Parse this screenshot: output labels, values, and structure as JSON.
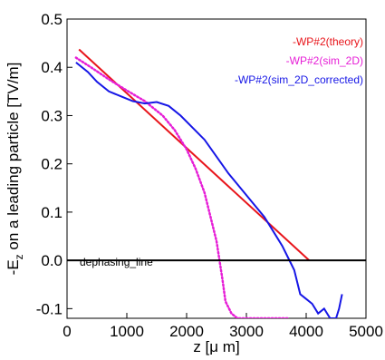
{
  "chart_data": {
    "type": "line",
    "title": "",
    "xlabel": "z [μ m]",
    "ylabel": "-E_z on a leading particle [TV/m]",
    "xlim": [
      0,
      5000
    ],
    "ylim": [
      -0.12,
      0.5
    ],
    "x_ticks": [
      0,
      1000,
      2000,
      3000,
      4000,
      5000
    ],
    "y_ticks": [
      -0.1,
      0.0,
      0.1,
      0.2,
      0.3,
      0.4,
      0.5
    ],
    "x_tick_labels": [
      "0",
      "1000",
      "2000",
      "3000",
      "4000",
      "5000"
    ],
    "y_tick_labels": [
      "-0.1",
      "0.0",
      "0.1",
      "0.2",
      "0.3",
      "0.4",
      "0.5"
    ],
    "grid": false,
    "legend_position": "top-right",
    "series": [
      {
        "name": "-WP#2(theory)",
        "color": "#e8141a",
        "style": "solid",
        "x": [
          200,
          4050
        ],
        "y": [
          0.437,
          0.0
        ]
      },
      {
        "name": "-WP#2(sim_2D)",
        "color": "#e61ed6",
        "style": "dotted",
        "x": [
          150,
          400,
          700,
          1000,
          1300,
          1600,
          1800,
          2000,
          2150,
          2300,
          2400,
          2500,
          2550,
          2600,
          2650,
          2750,
          2850,
          3700
        ],
        "y": [
          0.42,
          0.4,
          0.375,
          0.352,
          0.33,
          0.3,
          0.27,
          0.23,
          0.19,
          0.14,
          0.09,
          0.04,
          0.0,
          -0.04,
          -0.085,
          -0.11,
          -0.12,
          -0.12
        ]
      },
      {
        "name": "-WP#2(sim_2D_corrected)",
        "color": "#1616e6",
        "style": "solid",
        "x": [
          150,
          350,
          500,
          700,
          900,
          1100,
          1300,
          1500,
          1700,
          1900,
          2100,
          2300,
          2500,
          2700,
          2900,
          3100,
          3300,
          3450,
          3600,
          3700,
          3800,
          3900,
          4000,
          4100,
          4200,
          4300,
          4400,
          4500,
          4550,
          4600
        ],
        "y": [
          0.41,
          0.39,
          0.37,
          0.35,
          0.34,
          0.33,
          0.325,
          0.328,
          0.32,
          0.3,
          0.275,
          0.25,
          0.215,
          0.18,
          0.15,
          0.12,
          0.09,
          0.06,
          0.03,
          0.005,
          -0.02,
          -0.07,
          -0.08,
          -0.09,
          -0.11,
          -0.1,
          -0.12,
          -0.12,
          -0.1,
          -0.07
        ]
      }
    ],
    "reference_line": {
      "label": "dephasing_line",
      "y": 0.0,
      "color": "#000000"
    }
  }
}
